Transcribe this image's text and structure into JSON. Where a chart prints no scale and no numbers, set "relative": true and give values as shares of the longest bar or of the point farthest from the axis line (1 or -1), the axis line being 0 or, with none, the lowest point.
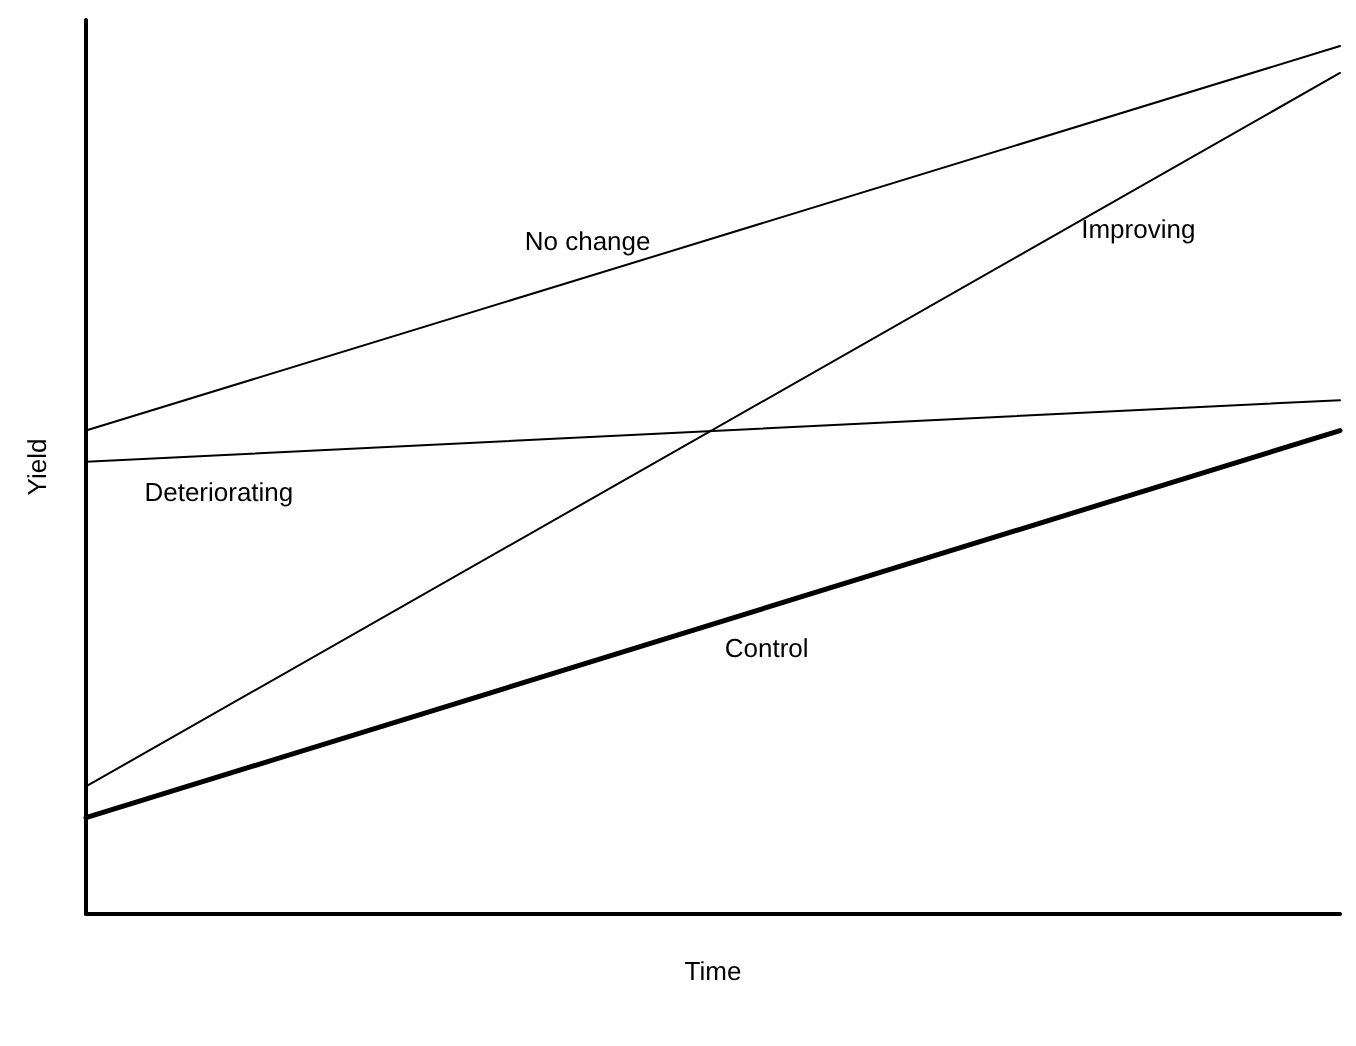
{
  "chart_data": {
    "type": "line",
    "relative": true,
    "xlabel": "Time",
    "ylabel": "Yield",
    "categories": [
      null,
      null
    ],
    "marker": "none",
    "line_style": "solid",
    "series": [
      {
        "name": "No change",
        "color": "#000000",
        "values": [
          0.557,
          1
        ]
      },
      {
        "name": "Improving",
        "color": "#000000",
        "values": [
          0.147,
          0.969
        ]
      },
      {
        "name": "Deteriorating",
        "color": "#000000",
        "values": [
          0.521,
          0.592
        ]
      },
      {
        "name": "Control",
        "color": "#000000",
        "values": [
          0.111,
          0.557
        ]
      }
    ]
  }
}
